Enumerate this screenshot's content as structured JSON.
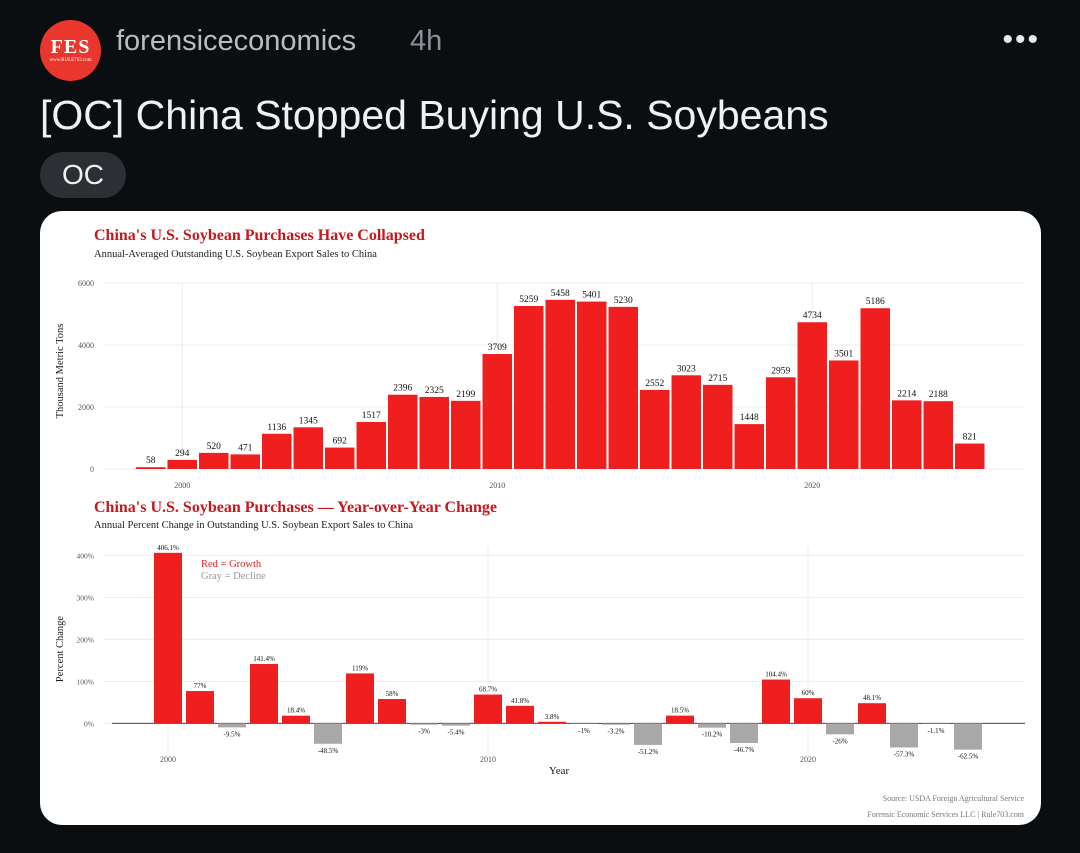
{
  "post": {
    "logo_text": "FES",
    "logo_sub": "www.RULE703.com",
    "username": "forensiceconomics",
    "time": "4h",
    "more": "•••",
    "title": "[OC] China Stopped Buying U.S. Soybeans",
    "flair": "OC"
  },
  "colors": {
    "red": "#f01f1f",
    "gray": "#a8a8a8",
    "title_red": "#c8171d"
  },
  "figure": {
    "source_line1": "Source: USDA Foreign Agricultural Service",
    "source_line2": "Forensic Economic Services LLC | Rule703.com"
  },
  "chart_data": [
    {
      "type": "bar",
      "title": "China's U.S. Soybean Purchases Have Collapsed",
      "subtitle": "Annual-Averaged Outstanding U.S. Soybean Export Sales to China",
      "ylabel": "Thousand Metric Tons",
      "xlabel": "",
      "ylim": [
        0,
        6000
      ],
      "yticks": [
        0,
        2000,
        4000,
        6000
      ],
      "xticks": [
        2000,
        2010,
        2020
      ],
      "grid": true,
      "categories": [
        1999,
        2000,
        2001,
        2002,
        2003,
        2004,
        2005,
        2006,
        2007,
        2008,
        2009,
        2010,
        2011,
        2012,
        2013,
        2014,
        2015,
        2016,
        2017,
        2018,
        2019,
        2020,
        2021,
        2022,
        2023,
        2024,
        2025
      ],
      "values": [
        58,
        294,
        520,
        471,
        1136,
        1345,
        692,
        1517,
        2396,
        2325,
        2199,
        3709,
        5259,
        5458,
        5401,
        5230,
        2552,
        3023,
        2715,
        1448,
        2959,
        4734,
        3501,
        5186,
        2214,
        2188,
        821
      ],
      "labels": [
        "58",
        "294",
        "520",
        "471",
        "1136",
        "1345",
        "692",
        "1517",
        "2396",
        "2325",
        "2199",
        "3709",
        "5259",
        "5458",
        "5401",
        "5230",
        "2552",
        "3023",
        "2715",
        "1448",
        "2959",
        "4734",
        "3501",
        "5186",
        "2214",
        "2188",
        "821"
      ]
    },
    {
      "type": "bar",
      "title": "China's U.S. Soybean Purchases — Year-over-Year Change",
      "subtitle": "Annual Percent Change in Outstanding U.S. Soybean Export Sales to China",
      "ylabel": "Percent Change",
      "xlabel": "Year",
      "ylim": [
        -80,
        420
      ],
      "yticks": [
        0,
        100,
        200,
        300,
        400
      ],
      "ytick_labels": [
        "0%",
        "100%",
        "200%",
        "300%",
        "400%"
      ],
      "xticks": [
        2000,
        2010,
        2020
      ],
      "grid": true,
      "legend": [
        "Red = Growth",
        "Gray = Decline"
      ],
      "legend_position": "top-left",
      "categories": [
        2000,
        2001,
        2002,
        2003,
        2004,
        2005,
        2006,
        2007,
        2008,
        2009,
        2010,
        2011,
        2012,
        2013,
        2014,
        2015,
        2016,
        2017,
        2018,
        2019,
        2020,
        2021,
        2022,
        2023,
        2024,
        2025
      ],
      "values": [
        406.1,
        77,
        -9.5,
        141.4,
        18.4,
        -48.5,
        119,
        58,
        -3,
        -5.4,
        68.7,
        41.8,
        3.8,
        -1,
        -3.2,
        -51.2,
        18.5,
        -10.2,
        -46.7,
        104.4,
        60,
        -26,
        48.1,
        -57.3,
        -1.1,
        -62.5
      ],
      "labels": [
        "406.1%",
        "77%",
        "-9.5%",
        "141.4%",
        "18.4%",
        "-48.5%",
        "119%",
        "58%",
        "-3%",
        "-5.4%",
        "68.7%",
        "41.8%",
        "3.8%",
        "-1%",
        "-3.2%",
        "-51.2%",
        "18.5%",
        "-10.2%",
        "-46.7%",
        "104.4%",
        "60%",
        "-26%",
        "48.1%",
        "-57.3%",
        "-1.1%",
        "-62.5%"
      ]
    }
  ]
}
